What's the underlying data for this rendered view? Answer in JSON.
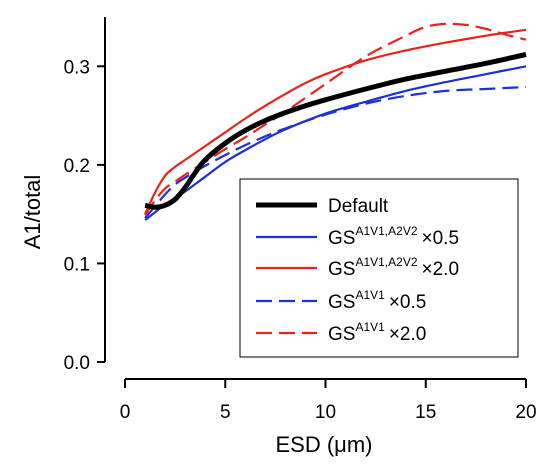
{
  "chart_data": {
    "type": "line",
    "xlabel": "ESD (μm)",
    "ylabel": "A1/total",
    "xlim": [
      0,
      20
    ],
    "ylim": [
      0,
      0.35
    ],
    "xticks": [
      "0",
      "5",
      "10",
      "15",
      "20"
    ],
    "yticks": [
      "0.0",
      "0.1",
      "0.2",
      "0.3"
    ],
    "grid": false,
    "legend_position": "bottom-right",
    "series": [
      {
        "name": "Default",
        "color": "#000000",
        "dash": "solid",
        "x": [
          1.0,
          1.5,
          2.0,
          2.5,
          3.0,
          3.5,
          4.0,
          5.0,
          6.0,
          7.0,
          8.0,
          9.0,
          10.0,
          12.0,
          14.0,
          16.0,
          18.0,
          20.0
        ],
        "y": [
          0.159,
          0.157,
          0.159,
          0.165,
          0.177,
          0.192,
          0.205,
          0.222,
          0.235,
          0.245,
          0.253,
          0.26,
          0.266,
          0.277,
          0.287,
          0.295,
          0.303,
          0.312
        ]
      },
      {
        "name_main": "GS",
        "name_sup": "A1V1,A2V2",
        "name_suffix": "×0.5",
        "color": "#1f2fd6",
        "dash": "solid",
        "x": [
          1.0,
          1.5,
          2.0,
          3.0,
          4.0,
          5.0,
          6.0,
          7.0,
          8.0,
          10.0,
          12.0,
          14.0,
          16.0,
          18.0,
          20.0
        ],
        "y": [
          0.144,
          0.152,
          0.16,
          0.173,
          0.188,
          0.203,
          0.215,
          0.226,
          0.236,
          0.252,
          0.264,
          0.275,
          0.284,
          0.292,
          0.3
        ]
      },
      {
        "name_main": "GS",
        "name_sup": "A1V1,A2V2",
        "name_suffix": "×2.0",
        "color": "#e8231e",
        "dash": "solid",
        "x": [
          1.0,
          1.5,
          2.0,
          2.5,
          3.0,
          4.0,
          5.0,
          6.0,
          7.0,
          8.0,
          9.0,
          10.0,
          12.0,
          14.0,
          16.0,
          18.0,
          20.0
        ],
        "y": [
          0.15,
          0.172,
          0.189,
          0.198,
          0.205,
          0.219,
          0.233,
          0.247,
          0.26,
          0.272,
          0.283,
          0.292,
          0.306,
          0.316,
          0.324,
          0.331,
          0.337
        ]
      },
      {
        "name_main": "GS",
        "name_sup": "A1V1",
        "name_suffix": "×0.5",
        "color": "#1f2fd6",
        "dash": "dashed",
        "x": [
          1.0,
          1.5,
          2.0,
          2.5,
          3.0,
          4.0,
          5.0,
          6.0,
          7.0,
          8.0,
          10.0,
          12.0,
          14.0,
          16.0,
          18.0,
          20.0
        ],
        "y": [
          0.146,
          0.158,
          0.17,
          0.18,
          0.187,
          0.199,
          0.21,
          0.22,
          0.229,
          0.237,
          0.251,
          0.262,
          0.27,
          0.275,
          0.277,
          0.279
        ]
      },
      {
        "name_main": "GS",
        "name_sup": "A1V1",
        "name_suffix": "×2.0",
        "color": "#e8231e",
        "dash": "dashed",
        "x": [
          1.0,
          1.5,
          2.0,
          2.5,
          3.0,
          4.0,
          5.0,
          6.0,
          7.0,
          8.0,
          10.0,
          12.0,
          14.0,
          15.0,
          16.0,
          17.0,
          18.0,
          19.0,
          20.0
        ],
        "y": [
          0.149,
          0.164,
          0.176,
          0.183,
          0.19,
          0.203,
          0.216,
          0.228,
          0.241,
          0.254,
          0.282,
          0.31,
          0.331,
          0.34,
          0.343,
          0.342,
          0.338,
          0.332,
          0.327
        ]
      }
    ]
  }
}
